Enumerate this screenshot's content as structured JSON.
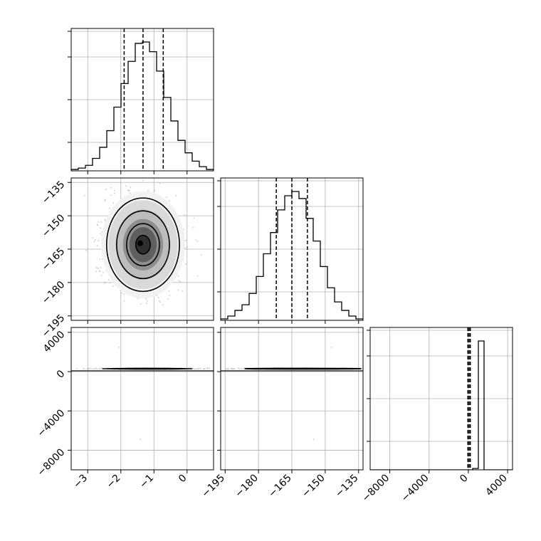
{
  "chart_data": {
    "type": "corner",
    "title": "",
    "grid": true,
    "colors": {
      "line": "#000000",
      "grid": "#b0b0b0",
      "scatter": "#c8c8c8"
    },
    "parameters": [
      {
        "name": "",
        "quantiles": [
          -1.9,
          -1.33,
          -0.72
        ],
        "hist_range": [
          -3.5,
          0.8
        ],
        "hist_counts": [
          1,
          2,
          4,
          9,
          17,
          29,
          46,
          63,
          79,
          92,
          93,
          86,
          72,
          53,
          36,
          22,
          13,
          7,
          3,
          1
        ],
        "ticks": [
          {
            "value": -3,
            "label": "−3"
          },
          {
            "value": -2,
            "label": "−2"
          },
          {
            "value": -1,
            "label": "−1"
          },
          {
            "value": 0,
            "label": "0"
          }
        ]
      },
      {
        "name": "",
        "quantiles": [
          -172,
          -165,
          -158
        ],
        "hist_range": [
          -197,
          -133
        ],
        "hist_counts": [
          1,
          3,
          7,
          11,
          19,
          31,
          47,
          62,
          78,
          88,
          91,
          86,
          72,
          56,
          38,
          23,
          13,
          7,
          3,
          1
        ],
        "ticks": [
          {
            "value": -195,
            "label": "−195"
          },
          {
            "value": -180,
            "label": "−180"
          },
          {
            "value": -165,
            "label": "−165"
          },
          {
            "value": -150,
            "label": "−150"
          },
          {
            "value": -135,
            "label": "−135"
          }
        ]
      },
      {
        "name": "",
        "quantiles": [
          -50,
          80,
          200
        ],
        "hist_range": [
          -10000,
          4500
        ],
        "hist_counts": [
          0,
          0,
          0,
          0,
          0,
          0,
          0,
          0,
          0,
          0,
          0,
          0,
          0,
          0,
          0,
          0,
          0,
          0,
          1,
          95,
          0,
          0,
          0,
          0,
          0
        ],
        "ticks": [
          {
            "value": -8000,
            "label": "−8000"
          },
          {
            "value": -4000,
            "label": "−4000"
          },
          {
            "value": 0,
            "label": "0"
          },
          {
            "value": 4000,
            "label": "4000"
          }
        ]
      }
    ],
    "panels_2d": [
      {
        "x_param": 0,
        "y_param": 1,
        "peak": [
          -1.33,
          -163
        ],
        "spread": [
          0.55,
          10.5
        ],
        "levels": [
          0.4,
          0.9,
          1.45,
          2.0
        ]
      },
      {
        "x_param": 0,
        "y_param": 2,
        "peak": [
          -1.2,
          300
        ],
        "spread": [
          0.55,
          80
        ],
        "levels": [
          0.5,
          1.0,
          1.6
        ]
      },
      {
        "x_param": 1,
        "y_param": 2,
        "peak": [
          -160,
          300
        ],
        "spread": [
          10.5,
          80
        ],
        "levels": [
          0.5,
          1.0,
          1.6
        ]
      }
    ]
  }
}
